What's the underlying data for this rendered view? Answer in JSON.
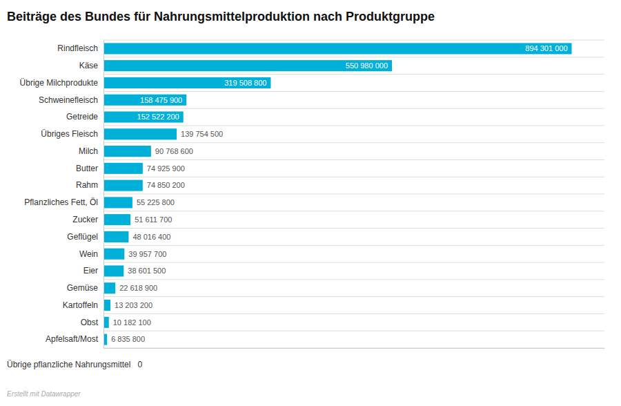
{
  "chart_data": {
    "type": "bar",
    "orientation": "horizontal",
    "title": "Beiträge des Bundes für Nahrungsmittelproduktion nach Produktgruppe",
    "categories": [
      "Rindfleisch",
      "Käse",
      "Übrige Milchprodukte",
      "Schweinefleisch",
      "Getreide",
      "Übriges Fleisch",
      "Milch",
      "Butter",
      "Rahm",
      "Pflanzliches Fett, Öl",
      "Zucker",
      "Geflügel",
      "Wein",
      "Eier",
      "Gemüse",
      "Kartoffeln",
      "Obst",
      "Apfelsaft/Most"
    ],
    "values": [
      894301000,
      550980000,
      319508800,
      158475900,
      152522200,
      139754500,
      90768600,
      74925900,
      74850200,
      55225800,
      51611700,
      48016400,
      39957700,
      38601500,
      22618900,
      13203200,
      10182100,
      6835800
    ],
    "value_labels": [
      "894 301 000",
      "550 980 000",
      "319 508 800",
      "158 475 900",
      "152 522 200",
      "139 754 500",
      "90 768 600",
      "74 925 900",
      "74 850 200",
      "55 225 800",
      "51 611 700",
      "48 016 400",
      "39 957 700",
      "38 601 500",
      "22 618 900",
      "13 203 200",
      "10 182 100",
      "6 835 800"
    ],
    "color": "#00b0d8",
    "data_labels": true,
    "xlim": [
      0,
      956902070
    ],
    "tick_labels": "y",
    "annotations": [
      "Übrige pflanzliche Nahrungsmittel   0",
      "Erstellt mit Datawrapper"
    ]
  }
}
